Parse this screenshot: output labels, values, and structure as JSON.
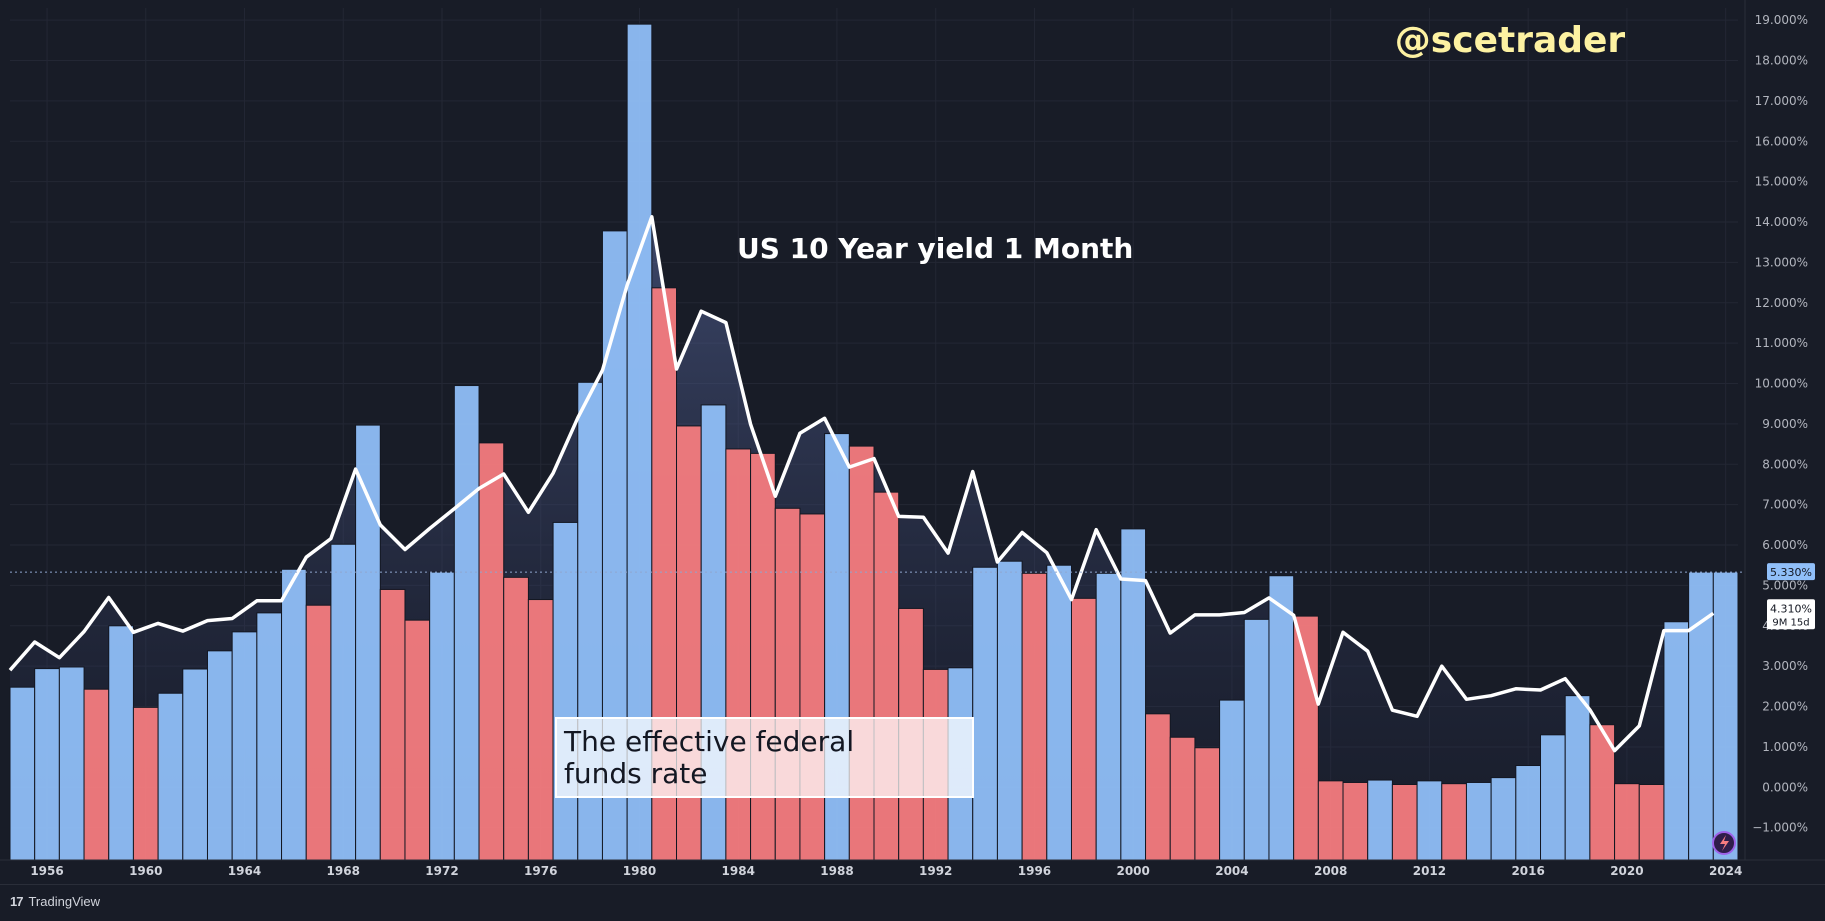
{
  "chart_data": {
    "type": "bar",
    "watermark": "@scetrader",
    "annotations": [
      {
        "id": "line-label",
        "text": "US 10 Year yield 1 Month"
      },
      {
        "id": "bar-label",
        "lines": [
          "The effective federal",
          "funds rate"
        ]
      }
    ],
    "x_tick_labels": [
      "1956",
      "1960",
      "1964",
      "1968",
      "1972",
      "1976",
      "1980",
      "1984",
      "1988",
      "1992",
      "1996",
      "2000",
      "2004",
      "2008",
      "2012",
      "2016",
      "2020",
      "2024"
    ],
    "y_ticks": [
      -1,
      0,
      1,
      2,
      3,
      4,
      5,
      6,
      7,
      8,
      9,
      10,
      11,
      12,
      13,
      14,
      15,
      16,
      17,
      18,
      19
    ],
    "y_tick_suffix": "%",
    "ylim": [
      -1.8,
      19.3
    ],
    "xlim": [
      1954.5,
      2024.5
    ],
    "grid": true,
    "colors": {
      "up": "#90bff9",
      "down": "#f77c80",
      "line": "#ffffff",
      "background": "#181c27"
    },
    "series": [
      {
        "kind": "bar",
        "x": [
          1955,
          1956,
          1957,
          1958,
          1959,
          1960,
          1961,
          1962,
          1963,
          1964,
          1965,
          1966,
          1967,
          1968,
          1969,
          1970,
          1971,
          1972,
          1973,
          1974,
          1975,
          1976,
          1977,
          1978,
          1979,
          1980,
          1981,
          1982,
          1983,
          1984,
          1985,
          1986,
          1987,
          1988,
          1989,
          1990,
          1991,
          1992,
          1993,
          1994,
          1995,
          1996,
          1997,
          1998,
          1999,
          2000,
          2001,
          2002,
          2003,
          2004,
          2005,
          2006,
          2007,
          2008,
          2009,
          2010,
          2011,
          2012,
          2013,
          2014,
          2015,
          2016,
          2017,
          2018,
          2019,
          2020,
          2021,
          2022,
          2023,
          2024
        ],
        "values": [
          2.48,
          2.94,
          2.98,
          2.43,
          4.0,
          1.98,
          2.33,
          2.93,
          3.38,
          3.85,
          4.32,
          5.4,
          4.51,
          6.02,
          8.97,
          4.9,
          4.14,
          5.33,
          9.95,
          8.53,
          5.2,
          4.65,
          6.56,
          10.03,
          13.78,
          18.9,
          12.37,
          8.95,
          9.47,
          8.38,
          8.27,
          6.91,
          6.77,
          8.76,
          8.45,
          7.31,
          4.43,
          2.92,
          2.96,
          5.45,
          5.6,
          5.3,
          5.5,
          4.68,
          5.3,
          6.4,
          1.82,
          1.24,
          0.98,
          2.16,
          4.16,
          5.24,
          4.24,
          0.16,
          0.12,
          0.18,
          0.07,
          0.16,
          0.09,
          0.12,
          0.24,
          0.54,
          1.3,
          2.27,
          1.55,
          0.09,
          0.07,
          4.1,
          5.33,
          5.33
        ],
        "colors": [
          "up",
          "up",
          "up",
          "down",
          "up",
          "down",
          "up",
          "up",
          "up",
          "up",
          "up",
          "up",
          "down",
          "up",
          "up",
          "down",
          "down",
          "up",
          "up",
          "down",
          "down",
          "down",
          "up",
          "up",
          "up",
          "up",
          "down",
          "down",
          "up",
          "down",
          "down",
          "down",
          "down",
          "up",
          "down",
          "down",
          "down",
          "down",
          "up",
          "up",
          "up",
          "down",
          "up",
          "down",
          "up",
          "up",
          "down",
          "down",
          "down",
          "up",
          "up",
          "up",
          "down",
          "down",
          "down",
          "up",
          "down",
          "up",
          "down",
          "up",
          "up",
          "up",
          "up",
          "up",
          "down",
          "down",
          "down",
          "up",
          "up",
          "up"
        ]
      },
      {
        "kind": "line",
        "x": [
          1954.5,
          1955.5,
          1956.5,
          1957.5,
          1958.5,
          1959.5,
          1960.5,
          1961.5,
          1962.5,
          1963.5,
          1964.5,
          1965.5,
          1966.5,
          1967.5,
          1968.5,
          1969.5,
          1970.5,
          1971.5,
          1972.5,
          1973.5,
          1974.5,
          1975.5,
          1976.5,
          1977.5,
          1978.5,
          1979.5,
          1980.5,
          1981.5,
          1982.5,
          1983.5,
          1984.5,
          1985.5,
          1986.5,
          1987.5,
          1988.5,
          1989.5,
          1990.5,
          1991.5,
          1992.5,
          1993.5,
          1994.5,
          1995.5,
          1996.5,
          1997.5,
          1998.5,
          1999.5,
          2000.5,
          2001.5,
          2002.5,
          2003.5,
          2004.5,
          2005.5,
          2006.5,
          2007.5,
          2008.5,
          2009.5,
          2010.5,
          2011.5,
          2012.5,
          2013.5,
          2014.5,
          2015.5,
          2016.5,
          2017.5,
          2018.5,
          2019.5,
          2020.5,
          2021.5,
          2022.5,
          2023.5
        ],
        "values": [
          2.9,
          3.6,
          3.21,
          3.86,
          4.7,
          3.84,
          4.06,
          3.87,
          4.13,
          4.18,
          4.62,
          4.62,
          5.7,
          6.16,
          7.88,
          6.5,
          5.89,
          6.41,
          6.9,
          7.4,
          7.76,
          6.81,
          7.78,
          9.15,
          10.33,
          12.43,
          14.13,
          10.36,
          11.79,
          11.51,
          8.99,
          7.21,
          8.77,
          9.14,
          7.93,
          8.14,
          6.71,
          6.69,
          5.8,
          7.82,
          5.58,
          6.31,
          5.81,
          4.65,
          6.38,
          5.16,
          5.12,
          3.82,
          4.27,
          4.27,
          4.33,
          4.69,
          4.26,
          2.06,
          3.84,
          3.37,
          1.91,
          1.76,
          3.0,
          2.18,
          2.27,
          2.44,
          2.41,
          2.69,
          1.92,
          0.91,
          1.52,
          3.88,
          3.88,
          4.31
        ]
      }
    ],
    "price_tags": [
      {
        "id": "bar-last",
        "label": "5.330%",
        "value": 5.33,
        "style": "up"
      },
      {
        "id": "line-last",
        "label": "4.310%",
        "sublabel": "9M 15d",
        "value": 4.31,
        "style": "white"
      }
    ]
  },
  "footer": {
    "brand_logo": "17",
    "brand_name": "TradingView"
  }
}
